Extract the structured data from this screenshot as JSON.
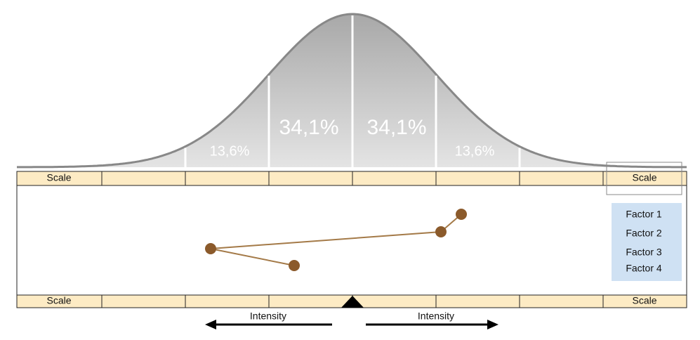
{
  "curve": {
    "segments": [
      {
        "label": "13,6%"
      },
      {
        "label": "34,1%"
      },
      {
        "label": "34,1%"
      },
      {
        "label": "13,6%"
      }
    ]
  },
  "top_scale": {
    "left": "Scale",
    "right": "Scale"
  },
  "bottom_scale": {
    "left": "Scale",
    "right": "Scale"
  },
  "factors": [
    "Factor 1",
    "Factor 2",
    "Factor 3",
    "Factor 4"
  ],
  "arrows": {
    "left": "Intensity",
    "right": "Intensity"
  }
}
